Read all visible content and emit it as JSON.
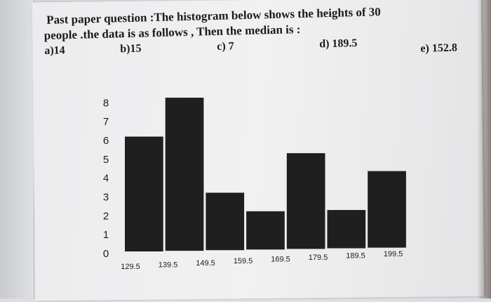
{
  "question": {
    "line1": "Past paper question :The histogram below shows the heights of 30",
    "line2": "people .the data is as follows , Then the median is :",
    "options": [
      {
        "label": "a)14"
      },
      {
        "label": "b)15"
      },
      {
        "label": "c) 7"
      },
      {
        "label": "d) 189.5"
      },
      {
        "label": "e) 152.8"
      }
    ]
  },
  "chart_data": {
    "type": "bar",
    "histogram": true,
    "bin_edges": [
      129.5,
      139.5,
      149.5,
      159.5,
      169.5,
      179.5,
      189.5,
      199.5
    ],
    "edge_labels": [
      "129.5",
      "139.5",
      "149.5",
      "159.5",
      "169.5",
      "179.5",
      "189.5",
      "199.5"
    ],
    "values": [
      6,
      8,
      3,
      2,
      5,
      2,
      4
    ],
    "y_ticks": [
      "0",
      "1",
      "2",
      "3",
      "4",
      "5",
      "6",
      "7",
      "8"
    ],
    "ylim": [
      0,
      8
    ],
    "xlabel": "",
    "ylabel": "",
    "title": "",
    "bar_color": "#1f1f1f",
    "grid": false
  }
}
